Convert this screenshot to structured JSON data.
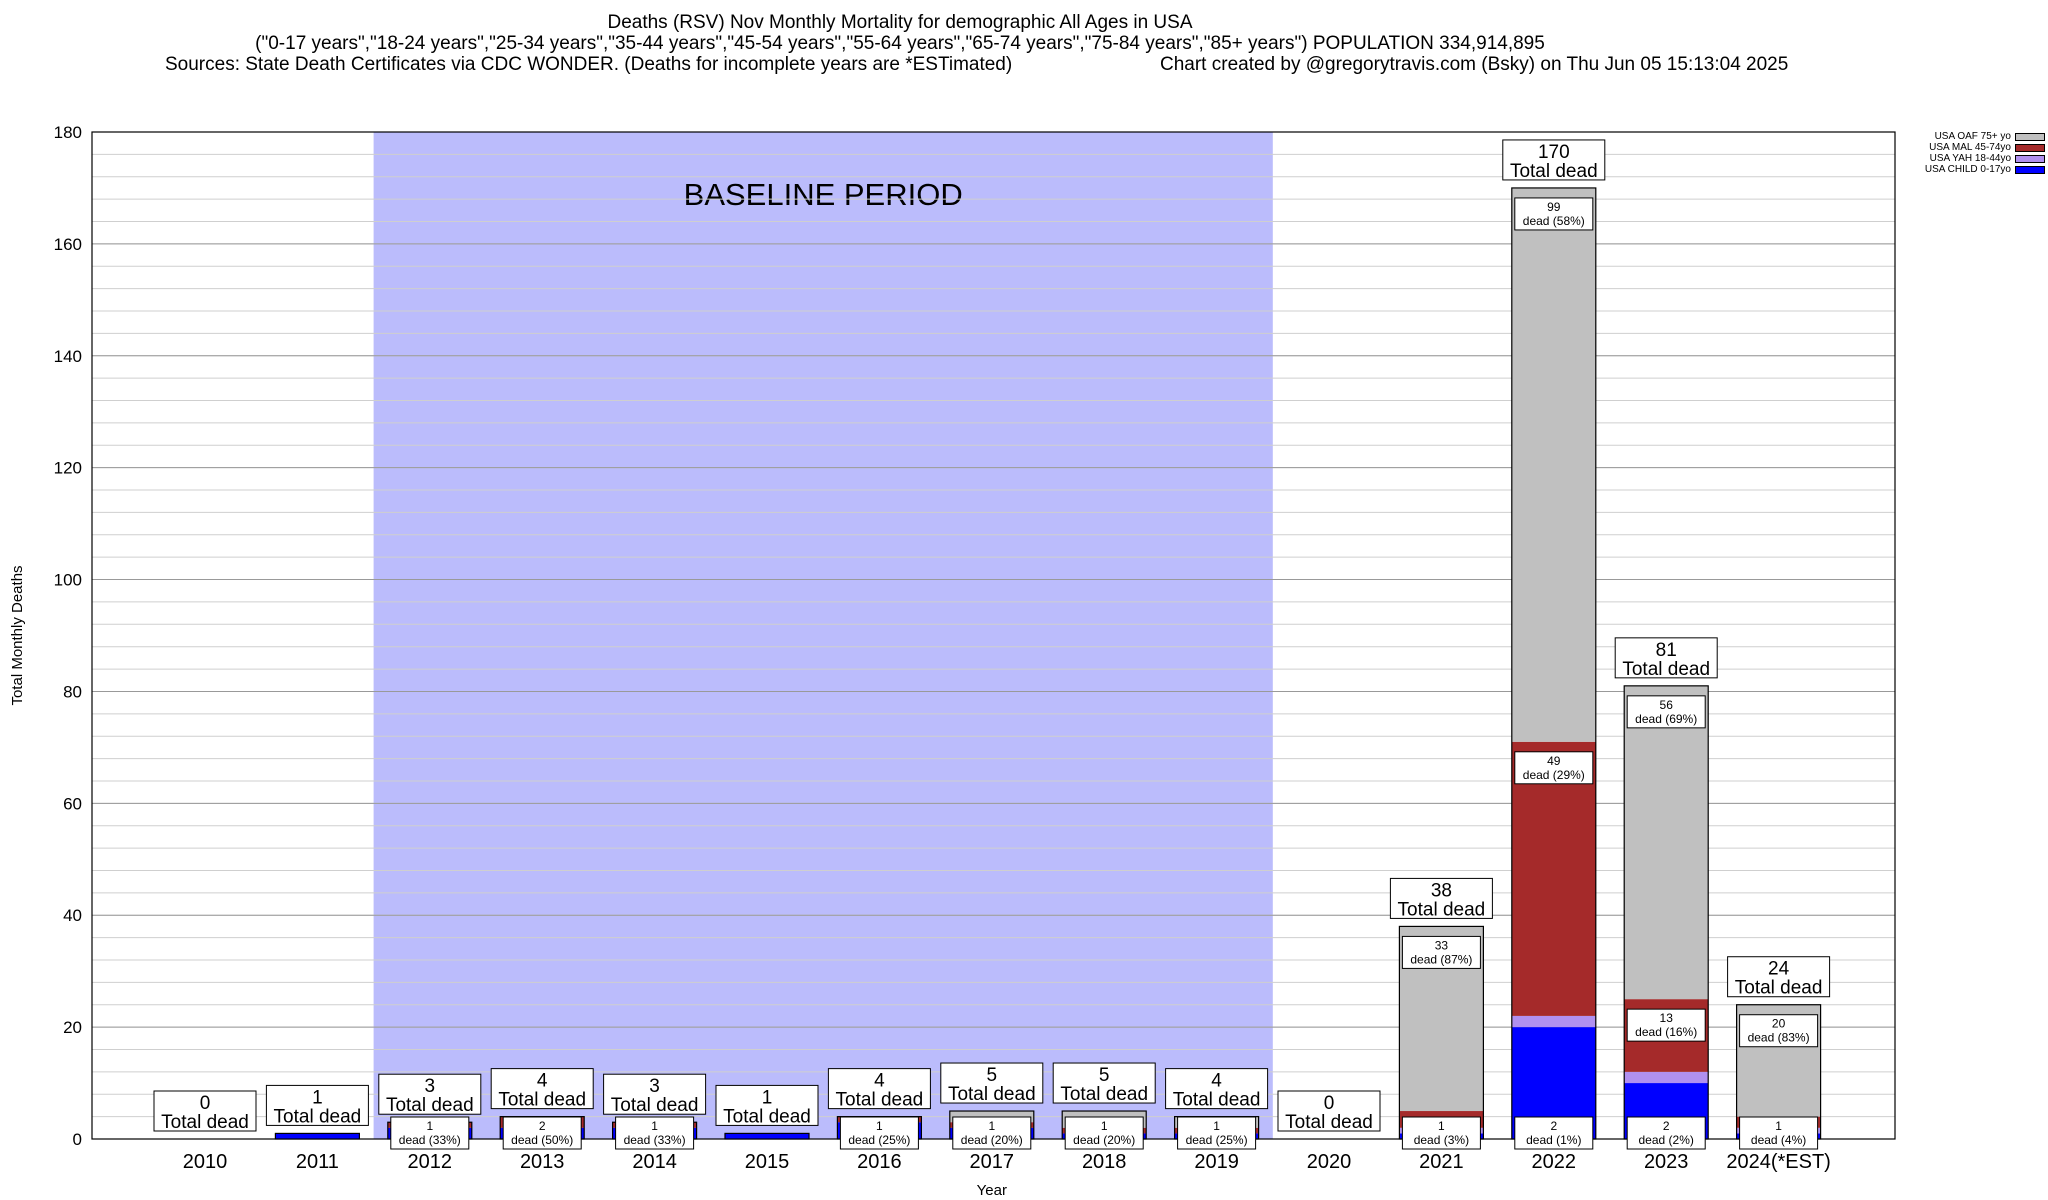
{
  "header": {
    "line1": "Deaths (RSV) Nov Monthly Mortality for demographic All Ages in USA",
    "line2": "(\"0-17 years\",\"18-24 years\",\"25-34 years\",\"35-44 years\",\"45-54 years\",\"55-64 years\",\"65-74 years\",\"75-84 years\",\"85+ years\") POPULATION 334,914,895",
    "line3_left": "Sources: State Death Certificates via CDC WONDER. (Deaths for incomplete years are *ESTimated)",
    "line3_right": "Chart created by @gregorytravis.com (Bsky) on Thu Jun 05 15:13:04 2025"
  },
  "legend": [
    {
      "label": "USA OAF 75+ yo",
      "color": "#c0c0c0"
    },
    {
      "label": "USA MAL 45-74yo",
      "color": "#a52a2a"
    },
    {
      "label": "USA YAH 18-44yo",
      "color": "#b090f0"
    },
    {
      "label": "USA CHILD 0-17yo",
      "color": "#0000ff"
    }
  ],
  "chart_data": {
    "type": "bar",
    "stacked": true,
    "ylabel": "Total Monthly Deaths",
    "xlabel": "Year",
    "ylim": [
      0,
      180
    ],
    "yticks": [
      0,
      20,
      40,
      60,
      80,
      100,
      120,
      140,
      160,
      180
    ],
    "categories": [
      "2010",
      "2011",
      "2012",
      "2013",
      "2014",
      "2015",
      "2016",
      "2017",
      "2018",
      "2019",
      "2020",
      "2021",
      "2022",
      "2023",
      "2024(*EST)"
    ],
    "baseline_label": "BASELINE PERIOD",
    "baseline_range": [
      "2012",
      "2019"
    ],
    "total_label": "Total dead",
    "segment_label": "dead",
    "colors": {
      "child": "#0000ff",
      "yah": "#b090f0",
      "mal": "#a52a2a",
      "oaf": "#c0c0c0",
      "baseline": "#bbbcfc"
    },
    "bars": [
      {
        "year": "2010",
        "total": 0,
        "segments": []
      },
      {
        "year": "2011",
        "total": 1,
        "segments": [
          {
            "group": "child",
            "value": 1
          }
        ]
      },
      {
        "year": "2012",
        "total": 3,
        "segments": [
          {
            "group": "child",
            "value": 2
          },
          {
            "group": "mal",
            "value": 1,
            "pct": "33%"
          }
        ]
      },
      {
        "year": "2013",
        "total": 4,
        "segments": [
          {
            "group": "child",
            "value": 2
          },
          {
            "group": "mal",
            "value": 2,
            "pct": "50%"
          }
        ]
      },
      {
        "year": "2014",
        "total": 3,
        "segments": [
          {
            "group": "child",
            "value": 2
          },
          {
            "group": "mal",
            "value": 1,
            "pct": "33%"
          }
        ]
      },
      {
        "year": "2015",
        "total": 1,
        "segments": [
          {
            "group": "child",
            "value": 1
          }
        ]
      },
      {
        "year": "2016",
        "total": 4,
        "segments": [
          {
            "group": "child",
            "value": 3
          },
          {
            "group": "mal",
            "value": 1,
            "pct": "25%"
          }
        ]
      },
      {
        "year": "2017",
        "total": 5,
        "segments": [
          {
            "group": "child",
            "value": 2
          },
          {
            "group": "mal",
            "value": 1,
            "pct": "20%"
          },
          {
            "group": "oaf",
            "value": 2
          }
        ]
      },
      {
        "year": "2018",
        "total": 5,
        "segments": [
          {
            "group": "child",
            "value": 1
          },
          {
            "group": "mal",
            "value": 1,
            "pct": "20%"
          },
          {
            "group": "oaf",
            "value": 3
          }
        ]
      },
      {
        "year": "2019",
        "total": 4,
        "segments": [
          {
            "group": "child",
            "value": 1
          },
          {
            "group": "mal",
            "value": 1,
            "pct": "25%"
          },
          {
            "group": "oaf",
            "value": 2
          }
        ]
      },
      {
        "year": "2020",
        "total": 0,
        "segments": []
      },
      {
        "year": "2021",
        "total": 38,
        "segments": [
          {
            "group": "child",
            "value": 1
          },
          {
            "group": "yah",
            "value": 1,
            "pct": "3%"
          },
          {
            "group": "mal",
            "value": 3
          },
          {
            "group": "oaf",
            "value": 33,
            "pct": "87%"
          }
        ]
      },
      {
        "year": "2022",
        "total": 170,
        "segments": [
          {
            "group": "child",
            "value": 20
          },
          {
            "group": "yah",
            "value": 2,
            "pct": "1%"
          },
          {
            "group": "mal",
            "value": 49,
            "pct": "29%"
          },
          {
            "group": "oaf",
            "value": 99,
            "pct": "58%"
          }
        ]
      },
      {
        "year": "2023",
        "total": 81,
        "segments": [
          {
            "group": "child",
            "value": 10
          },
          {
            "group": "yah",
            "value": 2,
            "pct": "2%"
          },
          {
            "group": "mal",
            "value": 13,
            "pct": "16%"
          },
          {
            "group": "oaf",
            "value": 56,
            "pct": "69%"
          }
        ]
      },
      {
        "year": "2024(*EST)",
        "total": 24,
        "segments": [
          {
            "group": "child",
            "value": 1
          },
          {
            "group": "yah",
            "value": 1,
            "pct": "4%"
          },
          {
            "group": "mal",
            "value": 2
          },
          {
            "group": "oaf",
            "value": 20,
            "pct": "83%"
          }
        ]
      }
    ]
  }
}
